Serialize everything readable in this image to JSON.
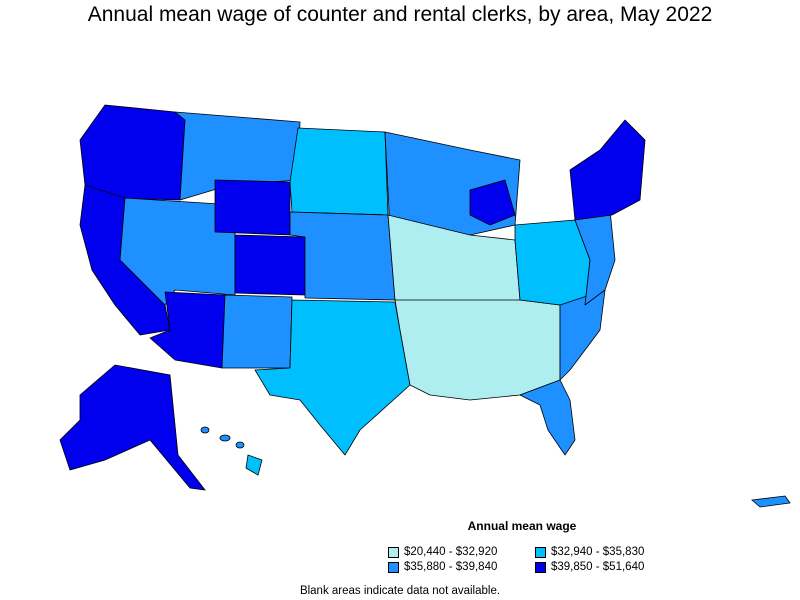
{
  "title": "Annual mean wage of counter and rental clerks, by area, May 2022",
  "legend": {
    "title": "Annual mean wage",
    "items": [
      {
        "label": "$20,440 - $32,920",
        "color": "#aeeef0"
      },
      {
        "label": "$32,940 - $35,830",
        "color": "#00bfff"
      },
      {
        "label": "$35,880 - $39,840",
        "color": "#1e90ff"
      },
      {
        "label": "$39,850 - $51,640",
        "color": "#0000ee"
      }
    ]
  },
  "note": "Blank areas indicate data not available.",
  "colors": {
    "tier1": "#aeeef0",
    "tier2": "#00bfff",
    "tier3": "#1e90ff",
    "tier4": "#0000ee",
    "border": "#000000",
    "no_data": "#ffffff"
  }
}
